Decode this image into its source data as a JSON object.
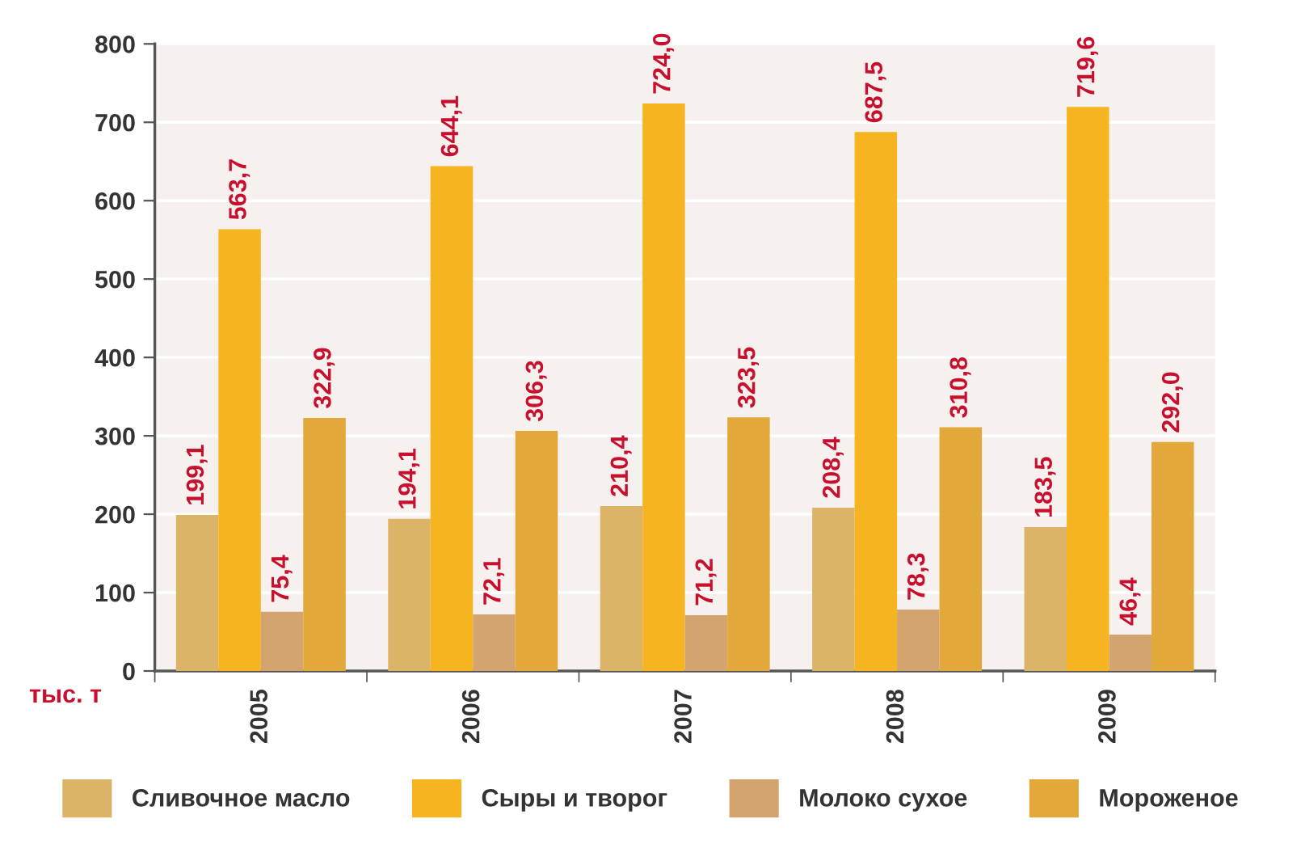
{
  "chart_data": {
    "type": "bar",
    "ylabel": "тыс. т",
    "categories": [
      "2005",
      "2006",
      "2007",
      "2008",
      "2009"
    ],
    "series": [
      {
        "name": "Сливочное масло",
        "color": "#dcb468",
        "values": [
          199.1,
          194.1,
          210.4,
          208.4,
          183.5
        ],
        "value_labels": [
          "199,1",
          "194,1",
          "210,4",
          "208,4",
          "183,5"
        ]
      },
      {
        "name": "Сыры и творог",
        "color": "#f6b520",
        "values": [
          563.7,
          644.1,
          724.0,
          687.5,
          719.6
        ],
        "value_labels": [
          "563,7",
          "644,1",
          "724,0",
          "687,5",
          "719,6"
        ]
      },
      {
        "name": "Молоко сухое",
        "color": "#d4a46e",
        "values": [
          75.4,
          72.1,
          71.2,
          78.3,
          46.4
        ],
        "value_labels": [
          "75,4",
          "72,1",
          "71,2",
          "78,3",
          "46,4"
        ]
      },
      {
        "name": "Мороженое",
        "color": "#e3a83a",
        "values": [
          322.9,
          306.3,
          323.5,
          310.8,
          292.0
        ],
        "value_labels": [
          "322,9",
          "306,3",
          "323,5",
          "310,8",
          "292,0"
        ]
      }
    ],
    "ylim": [
      0,
      800
    ],
    "yticks": [
      0,
      100,
      200,
      300,
      400,
      500,
      600,
      700,
      800
    ],
    "grid": "y",
    "legend": "bottom"
  }
}
